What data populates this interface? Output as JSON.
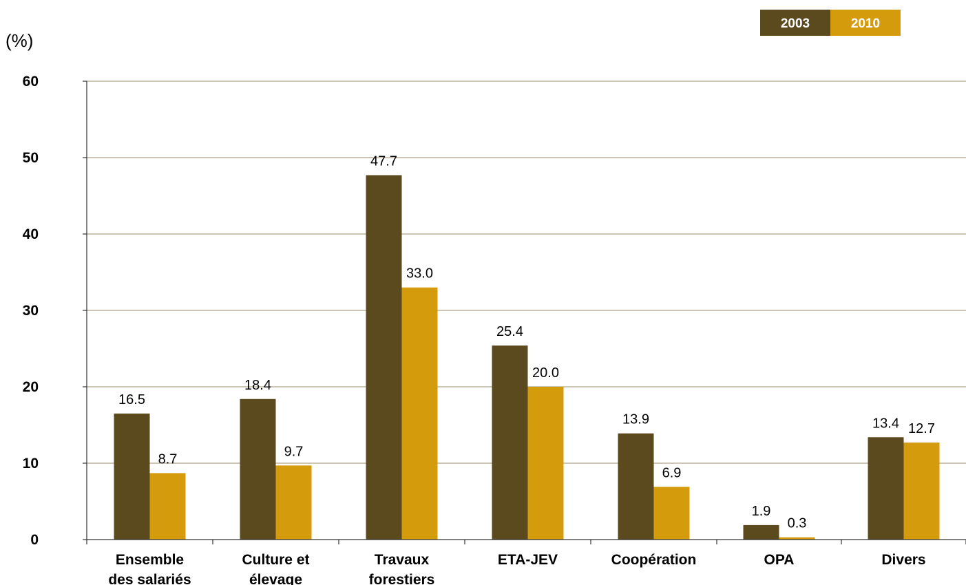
{
  "chart_data": {
    "type": "bar",
    "ylabel": "(%)",
    "ylim": [
      0,
      60
    ],
    "yticks": [
      "0",
      "10",
      "20",
      "30",
      "40",
      "50",
      "60"
    ],
    "grid": true,
    "legend_position": "top-right",
    "categories": [
      [
        "Ensemble",
        "des salariés"
      ],
      [
        "Culture et",
        "élevage"
      ],
      [
        "Travaux",
        "forestiers"
      ],
      [
        "ETA-JEV"
      ],
      [
        "Coopération"
      ],
      [
        "OPA"
      ],
      [
        "Divers"
      ]
    ],
    "series": [
      {
        "name": "2003",
        "color": "#5c4a1f",
        "values": [
          16.5,
          18.4,
          47.7,
          25.4,
          13.9,
          1.9,
          13.4
        ],
        "labels": [
          "16.5",
          "18.4",
          "47.7",
          "25.4",
          "13.9",
          "1.9",
          "13.4"
        ]
      },
      {
        "name": "2010",
        "color": "#d49c0c",
        "values": [
          8.7,
          9.7,
          33.0,
          20.0,
          6.9,
          0.3,
          12.7
        ],
        "labels": [
          "8.7",
          "9.7",
          "33.0",
          "20.0",
          "6.9",
          "0.3",
          "12.7"
        ]
      }
    ]
  }
}
